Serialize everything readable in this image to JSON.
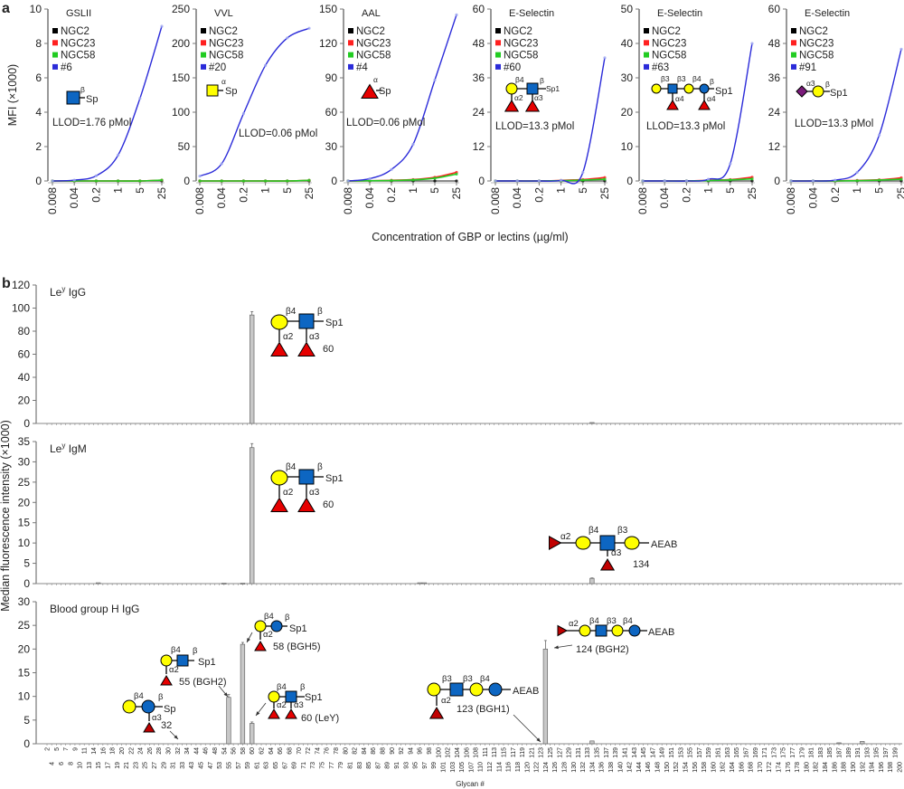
{
  "panel_labels": {
    "a": "a",
    "b": "b"
  },
  "panel_a": {
    "ylabel": "MFI (×1000)",
    "xlabel": "Concentration of GBP or lectins (µg/ml)"
  },
  "panel_b": {
    "ylabel": "Median fluorescence intensity (×1000)",
    "xlabel": "Glycan #",
    "categories": [
      2,
      4,
      5,
      6,
      7,
      8,
      9,
      10,
      11,
      13,
      14,
      15,
      16,
      17,
      18,
      19,
      20,
      21,
      22,
      23,
      24,
      25,
      26,
      27,
      28,
      29,
      30,
      31,
      32,
      33,
      34,
      43,
      44,
      45,
      46,
      47,
      48,
      53,
      54,
      55,
      56,
      57,
      58,
      59,
      60,
      61,
      62,
      63,
      64,
      65,
      66,
      67,
      68,
      69,
      70,
      71,
      72,
      73,
      74,
      75,
      76,
      77,
      78,
      79,
      80,
      81,
      82,
      83,
      84,
      85,
      86,
      87,
      88,
      89,
      90,
      91,
      92,
      93,
      94,
      95,
      96,
      97,
      98,
      99,
      100,
      101,
      102,
      103,
      104,
      105,
      106,
      107,
      108,
      110,
      111,
      112,
      113,
      114,
      115,
      116,
      117,
      118,
      119,
      120,
      121,
      122,
      123,
      124,
      125,
      126,
      127,
      128,
      129,
      130,
      131,
      132,
      133,
      134,
      135,
      136,
      137,
      138,
      139,
      140,
      141,
      142,
      143,
      144,
      145,
      146,
      147,
      148,
      149,
      150,
      151,
      152,
      153,
      154,
      155,
      156,
      157,
      158,
      159,
      160,
      161,
      162,
      163,
      164,
      165,
      166,
      167,
      168,
      169,
      170,
      171,
      172,
      173,
      174,
      175,
      176,
      177,
      178,
      179,
      180,
      181,
      182,
      183,
      184,
      185,
      186,
      187,
      188,
      189,
      190,
      191,
      192,
      193,
      194,
      195,
      196,
      197,
      198,
      199,
      200
    ]
  },
  "chart_data": [
    {
      "type": "line",
      "title": "GSLII",
      "x": [
        "0.008",
        "0.04",
        "0.2",
        "1",
        "5",
        "25"
      ],
      "xscale": "log",
      "ylim": [
        0,
        10
      ],
      "yticks": [
        0,
        2,
        4,
        6,
        8,
        10
      ],
      "series": [
        {
          "name": "NGC2",
          "color": "#000000",
          "values": [
            0,
            0,
            0,
            0,
            0,
            0
          ]
        },
        {
          "name": "NGC23",
          "color": "#ff2020",
          "values": [
            0,
            0,
            0,
            0,
            0,
            0.05
          ]
        },
        {
          "name": "NGC58",
          "color": "#22cc22",
          "values": [
            0,
            0,
            0,
            0,
            0,
            0.05
          ]
        },
        {
          "name": "#6",
          "color": "#2b2bd9",
          "values": [
            0,
            0.05,
            0.3,
            1.5,
            4.8,
            9.0
          ]
        }
      ],
      "glycan_text": [
        "β",
        "Sp"
      ],
      "annotation": "LLOD=1.76 pMol"
    },
    {
      "type": "line",
      "title": "VVL",
      "x": [
        "0.008",
        "0.04",
        "0.2",
        "1",
        "5",
        "25"
      ],
      "xscale": "log",
      "ylim": [
        0,
        250
      ],
      "yticks": [
        0,
        50,
        100,
        150,
        200,
        250
      ],
      "series": [
        {
          "name": "NGC2",
          "color": "#000000",
          "values": [
            0,
            0,
            0,
            0,
            0,
            0
          ]
        },
        {
          "name": "NGC23",
          "color": "#ff2020",
          "values": [
            0,
            0,
            0,
            0,
            0,
            1
          ]
        },
        {
          "name": "NGC58",
          "color": "#22cc22",
          "values": [
            0,
            0,
            0,
            0,
            0,
            1
          ]
        },
        {
          "name": "#20",
          "color": "#2b2bd9",
          "values": [
            7,
            25,
            98,
            168,
            208,
            222
          ]
        }
      ],
      "glycan_text": [
        "α",
        "Sp"
      ],
      "annotation": "LLOD=0.06 pMol"
    },
    {
      "type": "line",
      "title": "AAL",
      "x": [
        "0.008",
        "0.04",
        "0.2",
        "1",
        "5",
        "25"
      ],
      "xscale": "log",
      "ylim": [
        0,
        150
      ],
      "yticks": [
        0,
        30,
        60,
        90,
        120,
        150
      ],
      "series": [
        {
          "name": "NGC2",
          "color": "#000000",
          "values": [
            0,
            0,
            0,
            0,
            0,
            0
          ]
        },
        {
          "name": "NGC23",
          "color": "#ff2020",
          "values": [
            0,
            0.2,
            0.6,
            1.2,
            3.2,
            7.5
          ]
        },
        {
          "name": "NGC58",
          "color": "#22cc22",
          "values": [
            0,
            0.2,
            0.4,
            0.9,
            2.4,
            6
          ]
        },
        {
          "name": "#4",
          "color": "#2b2bd9",
          "values": [
            0,
            2,
            10,
            32,
            88,
            145
          ]
        }
      ],
      "glycan_text": [
        "α",
        "Sp"
      ],
      "annotation": "LLOD=0.06 pMol"
    },
    {
      "type": "line",
      "title": "E-Selectin",
      "x": [
        "0.008",
        "0.04",
        "0.2",
        "1",
        "5",
        "25"
      ],
      "xscale": "log",
      "ylim": [
        0,
        60
      ],
      "yticks": [
        0,
        12,
        24,
        36,
        48,
        60
      ],
      "series": [
        {
          "name": "NGC2",
          "color": "#000000",
          "values": [
            0,
            0,
            0,
            0,
            0,
            0
          ]
        },
        {
          "name": "NGC23",
          "color": "#ff2020",
          "values": [
            0,
            0,
            0,
            0.2,
            0.5,
            1.2
          ]
        },
        {
          "name": "NGC58",
          "color": "#22cc22",
          "values": [
            0,
            0,
            0,
            0.1,
            0.3,
            0.6
          ]
        },
        {
          "name": "#60",
          "color": "#2b2bd9",
          "values": [
            0,
            0,
            0,
            0.2,
            3,
            43
          ]
        }
      ],
      "glycan_text": [
        "β4",
        "β",
        "Sp1",
        "α2",
        "α3"
      ],
      "annotation": "LLOD=13.3 pMol"
    },
    {
      "type": "line",
      "title": "E-Selectin",
      "x": [
        "0.008",
        "0.04",
        "0.2",
        "1",
        "5",
        "25"
      ],
      "xscale": "log",
      "ylim": [
        0,
        50
      ],
      "yticks": [
        0,
        10,
        20,
        30,
        40,
        50
      ],
      "series": [
        {
          "name": "NGC2",
          "color": "#000000",
          "values": [
            0,
            0,
            0,
            0,
            0,
            0
          ]
        },
        {
          "name": "NGC23",
          "color": "#ff2020",
          "values": [
            0,
            0,
            0,
            0.2,
            0.4,
            1.1
          ]
        },
        {
          "name": "NGC58",
          "color": "#22cc22",
          "values": [
            0,
            0,
            0,
            0.1,
            0.3,
            0.6
          ]
        },
        {
          "name": "#63",
          "color": "#2b2bd9",
          "values": [
            0,
            0,
            0,
            0.5,
            5,
            40
          ]
        }
      ],
      "glycan_text": [
        "β3",
        "β3",
        "β4",
        "β",
        "Sp1",
        "α4",
        "α4"
      ],
      "annotation": "LLOD=13.3 pMol"
    },
    {
      "type": "line",
      "title": "E-Selectin",
      "x": [
        "0.008",
        "0.04",
        "0.2",
        "1",
        "5",
        "25"
      ],
      "xscale": "log",
      "ylim": [
        0,
        60
      ],
      "yticks": [
        0,
        12,
        24,
        36,
        48,
        60
      ],
      "series": [
        {
          "name": "NGC2",
          "color": "#000000",
          "values": [
            0,
            0,
            0,
            0,
            0,
            0
          ]
        },
        {
          "name": "NGC23",
          "color": "#ff2020",
          "values": [
            0,
            0,
            0,
            0.2,
            0.4,
            1.1
          ]
        },
        {
          "name": "NGC58",
          "color": "#22cc22",
          "values": [
            0,
            0,
            0,
            0.1,
            0.3,
            0.6
          ]
        },
        {
          "name": "#91",
          "color": "#2b2bd9",
          "values": [
            0,
            0,
            0.3,
            3,
            16,
            46
          ]
        }
      ],
      "glycan_text": [
        "α3",
        "β",
        "Sp1"
      ],
      "annotation": "LLOD=13.3 pMol"
    },
    {
      "type": "bar",
      "title": "Le",
      "title_sup": "y",
      "title_rest": " IgG",
      "ylim": [
        0,
        120
      ],
      "yticks": [
        0,
        20,
        40,
        60,
        80,
        100,
        120
      ],
      "bars": [
        {
          "glycan": 60,
          "value": 94,
          "error": 3
        },
        {
          "glycan": 134,
          "value": 0.8,
          "error": 0
        }
      ],
      "glycans": [
        {
          "text": [
            "β4",
            "β",
            "Sp1",
            "α2",
            "α3",
            "60"
          ]
        }
      ]
    },
    {
      "type": "bar",
      "title": "Le",
      "title_sup": "y",
      "title_rest": " IgM",
      "ylim": [
        0,
        35
      ],
      "yticks": [
        0,
        5,
        10,
        15,
        20,
        25,
        30,
        35
      ],
      "bars": [
        {
          "glycan": 15,
          "value": 0.2,
          "error": 0
        },
        {
          "glycan": 54,
          "value": 0.1,
          "error": 0
        },
        {
          "glycan": 58,
          "value": 0.1,
          "error": 0
        },
        {
          "glycan": 60,
          "value": 33.5,
          "error": 1
        },
        {
          "glycan": 96,
          "value": 0.2,
          "error": 0
        },
        {
          "glycan": 97,
          "value": 0.2,
          "error": 0
        },
        {
          "glycan": 134,
          "value": 1.3,
          "error": 0.1
        }
      ],
      "glycans": [
        {
          "text": [
            "β4",
            "β",
            "Sp1",
            "α2",
            "α3",
            "60"
          ]
        },
        {
          "text": [
            "α2",
            "β4",
            "β3",
            "AEAB",
            "α3",
            "134"
          ]
        }
      ]
    },
    {
      "type": "bar",
      "title": "Blood group H IgG",
      "title_sup": "",
      "title_rest": "",
      "ylim": [
        0,
        30
      ],
      "yticks": [
        0,
        5,
        10,
        15,
        20,
        25,
        30
      ],
      "bars": [
        {
          "glycan": 55,
          "value": 9.8,
          "error": 0.6
        },
        {
          "glycan": 58,
          "value": 21,
          "error": 0.4
        },
        {
          "glycan": 60,
          "value": 4.3,
          "error": 0.3
        },
        {
          "glycan": 124,
          "value": 20,
          "error": 1.8
        },
        {
          "glycan": 134,
          "value": 0.6,
          "error": 0
        },
        {
          "glycan": 187,
          "value": 0.2,
          "error": 0
        },
        {
          "glycan": 192,
          "value": 0.5,
          "error": 0
        }
      ],
      "glycans": [
        {
          "text": [
            "β4",
            "β",
            "Sp",
            "α3",
            "32"
          ]
        },
        {
          "text": [
            "β4",
            "β",
            "Sp1",
            "α2",
            "55 (BGH2)"
          ]
        },
        {
          "text": [
            "β4",
            "β",
            "Sp1",
            "α2",
            "58 (BGH5)"
          ]
        },
        {
          "text": [
            "β4",
            "β",
            "Sp1",
            "α2",
            "α3",
            "60 (LeY)"
          ]
        },
        {
          "text": [
            "β3",
            "β3",
            "β4",
            "AEAB",
            "α2",
            "123 (BGH1)"
          ]
        },
        {
          "text": [
            "α2",
            "β4",
            "β3",
            "β4",
            "AEAB",
            "124 (BGH2)"
          ]
        }
      ]
    }
  ]
}
